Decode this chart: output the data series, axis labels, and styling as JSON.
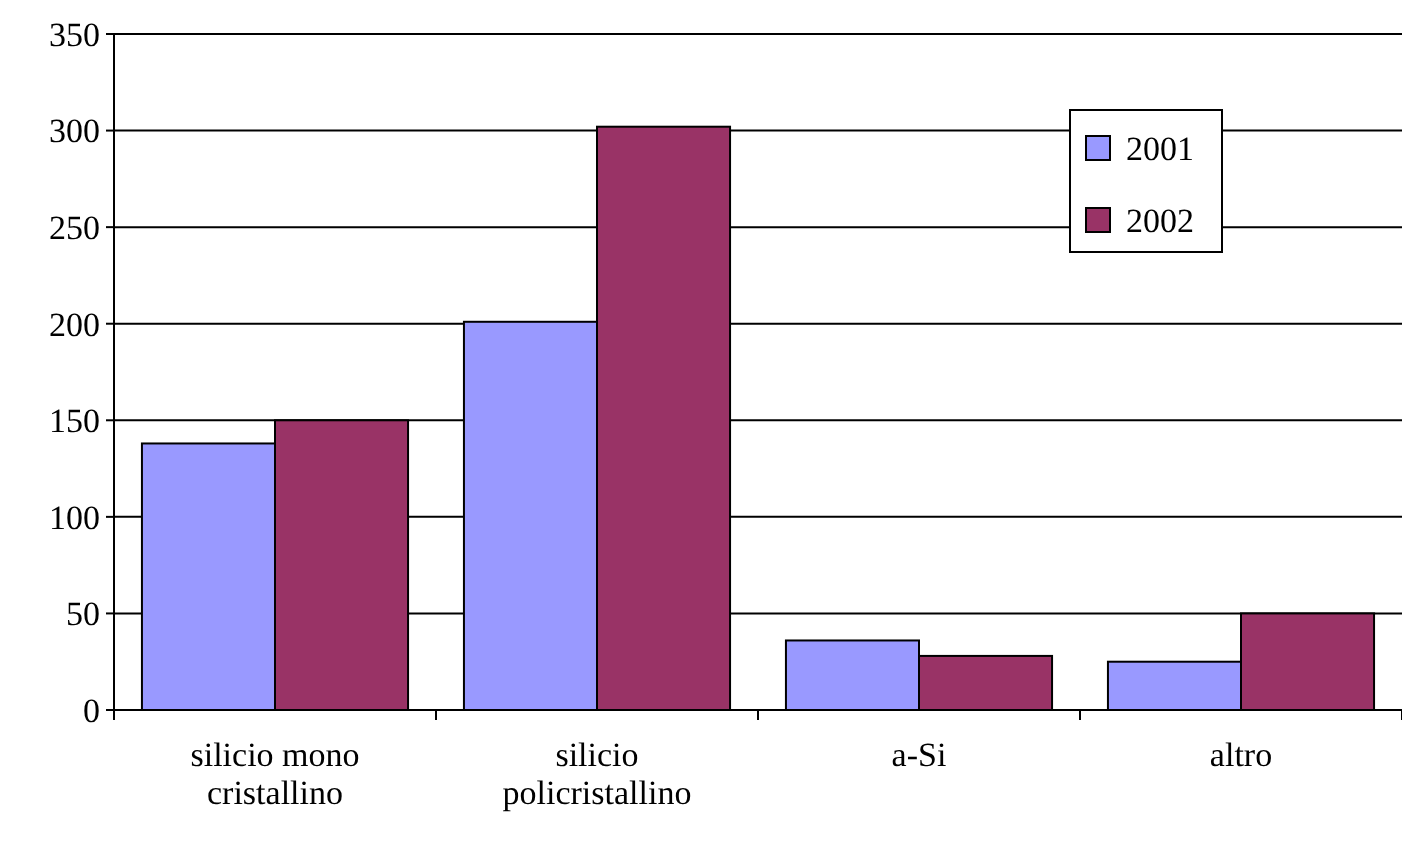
{
  "chart_data": {
    "type": "bar",
    "categories": [
      "silicio mono cristallino",
      "silicio policristallino",
      "a-Si",
      "altro"
    ],
    "series": [
      {
        "name": "2001",
        "color": "#9999ff",
        "values": [
          138,
          201,
          36,
          25
        ]
      },
      {
        "name": "2002",
        "color": "#993366",
        "values": [
          150,
          302,
          28,
          50
        ]
      }
    ],
    "ylim": [
      0,
      350
    ],
    "yticks": [
      0,
      50,
      100,
      150,
      200,
      250,
      300,
      350
    ],
    "grid": "y",
    "legend": "top right"
  }
}
